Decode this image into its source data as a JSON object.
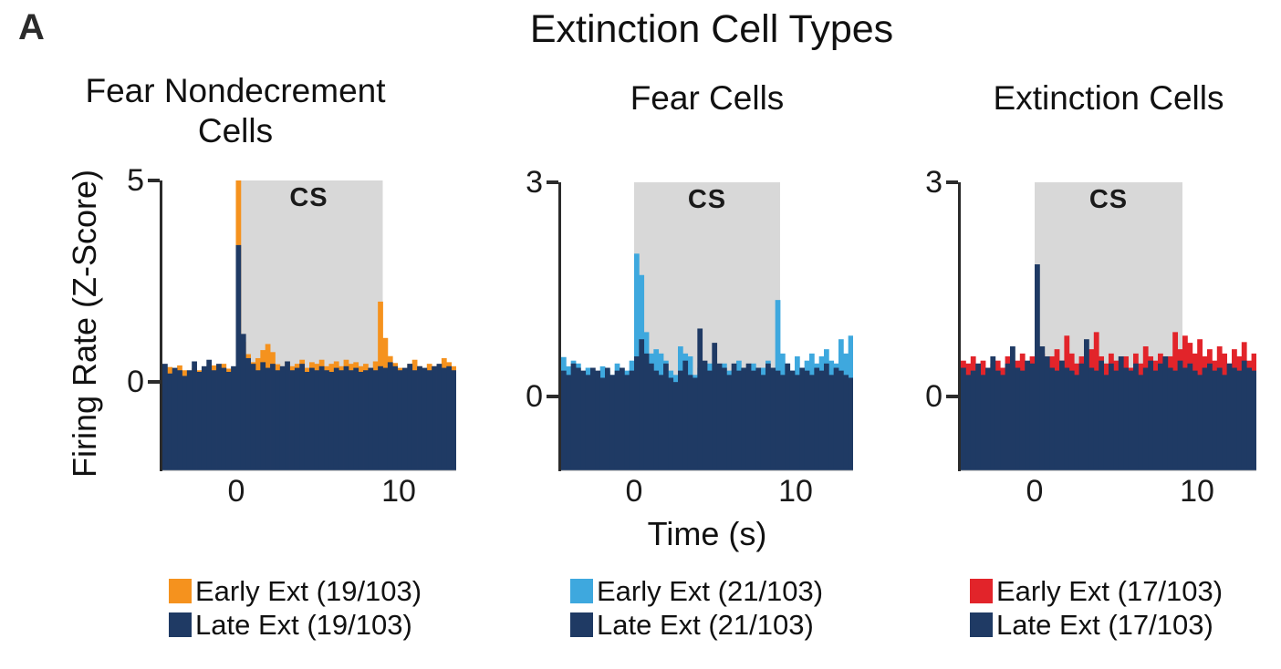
{
  "panel_label": "A",
  "title": "Extinction Cell Types",
  "xlabel": "Time (s)",
  "ylabel": "Firing Rate (Z-Score)",
  "cs_label": "CS",
  "colors": {
    "early_nondecrement": "#F5921E",
    "early_fear": "#3EA8DE",
    "early_extinction": "#E2242A",
    "late": "#1F3A64",
    "cs_box": "#D8D8D8",
    "axis": "#2b2b2b"
  },
  "chart_data": [
    {
      "type": "bar",
      "title_lines": [
        "Fear Nondecrement",
        "Cells"
      ],
      "xlim": [
        -5,
        15
      ],
      "ylim": [
        -2.2,
        5
      ],
      "xticks": [
        0,
        10
      ],
      "xtick_labels": [
        "0",
        "10"
      ],
      "yticks": [
        5,
        0
      ],
      "ytick_labels": [
        "5",
        "0"
      ],
      "cs_interval": [
        0,
        10
      ],
      "series": [
        {
          "name": "Early Ext (19/103)",
          "color": "#F5921E",
          "values": [
            0.3,
            0.38,
            0.25,
            0.42,
            0.3,
            0.22,
            0.35,
            0.3,
            0.26,
            0.36,
            0.42,
            0.3,
            0.46,
            0.34,
            0.3,
            5.0,
            1.0,
            0.7,
            0.5,
            0.6,
            0.8,
            0.95,
            0.75,
            0.45,
            0.35,
            0.52,
            0.4,
            0.46,
            0.56,
            0.36,
            0.5,
            0.46,
            0.56,
            0.4,
            0.46,
            0.52,
            0.4,
            0.56,
            0.46,
            0.5,
            0.4,
            0.46,
            0.36,
            0.52,
            2.0,
            1.1,
            0.65,
            0.48,
            0.36,
            0.3,
            0.46,
            0.56,
            0.4,
            0.34,
            0.46,
            0.4,
            0.34,
            0.6,
            0.5,
            0.4
          ]
        },
        {
          "name": "Late Ext (19/103)",
          "color": "#1F3A64",
          "values": [
            0.46,
            0.22,
            0.36,
            0.3,
            0.16,
            0.3,
            0.52,
            0.26,
            0.4,
            0.56,
            0.3,
            0.46,
            0.36,
            0.26,
            0.4,
            3.4,
            1.2,
            0.6,
            0.46,
            0.3,
            0.5,
            0.36,
            0.46,
            0.3,
            0.4,
            0.52,
            0.3,
            0.36,
            0.46,
            0.26,
            0.36,
            0.3,
            0.4,
            0.3,
            0.26,
            0.36,
            0.3,
            0.4,
            0.3,
            0.36,
            0.26,
            0.3,
            0.36,
            0.3,
            0.4,
            0.36,
            0.5,
            0.4,
            0.3,
            0.36,
            0.46,
            0.3,
            0.4,
            0.36,
            0.3,
            0.4,
            0.46,
            0.36,
            0.4,
            0.3
          ]
        }
      ]
    },
    {
      "type": "bar",
      "title_lines": [
        "Fear Cells"
      ],
      "xlim": [
        -5,
        15
      ],
      "ylim": [
        -1.05,
        3
      ],
      "xticks": [
        0,
        10
      ],
      "xtick_labels": [
        "0",
        "10"
      ],
      "yticks": [
        3,
        0
      ],
      "ytick_labels": [
        "3",
        "0"
      ],
      "cs_interval": [
        0,
        10
      ],
      "series": [
        {
          "name": "Early Ext (21/103)",
          "color": "#3EA8DE",
          "values": [
            0.55,
            0.42,
            0.5,
            0.46,
            0.3,
            0.4,
            0.36,
            0.3,
            0.42,
            0.36,
            0.3,
            0.46,
            0.4,
            0.36,
            0.5,
            2.0,
            1.7,
            0.9,
            0.6,
            0.66,
            0.6,
            0.5,
            0.36,
            0.3,
            0.7,
            0.6,
            0.56,
            0.3,
            0.4,
            0.36,
            0.46,
            0.3,
            0.42,
            0.46,
            0.36,
            0.3,
            0.5,
            0.4,
            0.36,
            0.46,
            0.3,
            0.4,
            0.5,
            0.36,
            1.35,
            0.6,
            0.46,
            0.36,
            0.56,
            0.4,
            0.5,
            0.6,
            0.46,
            0.56,
            0.66,
            0.5,
            0.46,
            0.8,
            0.6,
            0.85
          ]
        },
        {
          "name": "Late Ext (21/103)",
          "color": "#1F3A64",
          "values": [
            0.36,
            0.3,
            0.46,
            0.4,
            0.36,
            0.3,
            0.4,
            0.36,
            0.26,
            0.4,
            0.3,
            0.36,
            0.4,
            0.3,
            0.36,
            0.56,
            0.8,
            0.6,
            0.46,
            0.36,
            0.3,
            0.46,
            0.26,
            0.2,
            0.36,
            0.5,
            0.3,
            0.26,
            0.95,
            0.5,
            0.36,
            0.75,
            0.46,
            0.4,
            0.3,
            0.46,
            0.36,
            0.4,
            0.46,
            0.36,
            0.4,
            0.3,
            0.46,
            0.4,
            0.36,
            0.3,
            0.46,
            0.36,
            0.3,
            0.4,
            0.36,
            0.3,
            0.4,
            0.36,
            0.46,
            0.3,
            0.4,
            0.36,
            0.3,
            0.26
          ]
        }
      ]
    },
    {
      "type": "bar",
      "title_lines": [
        "Extinction Cells"
      ],
      "xlim": [
        -5,
        15
      ],
      "ylim": [
        -1.05,
        3
      ],
      "xticks": [
        0,
        10
      ],
      "xtick_labels": [
        "0",
        "10"
      ],
      "yticks": [
        3,
        0
      ],
      "ytick_labels": [
        "3",
        "0"
      ],
      "cs_interval": [
        0,
        10
      ],
      "series": [
        {
          "name": "Early Ext (17/103)",
          "color": "#E2242A",
          "values": [
            0.5,
            0.46,
            0.56,
            0.4,
            0.5,
            0.36,
            0.46,
            0.5,
            0.4,
            0.56,
            0.46,
            0.5,
            0.6,
            0.4,
            0.56,
            0.5,
            0.6,
            0.46,
            0.56,
            0.66,
            0.5,
            0.85,
            0.6,
            0.46,
            0.56,
            0.5,
            0.66,
            0.9,
            0.56,
            0.46,
            0.6,
            0.5,
            0.46,
            0.56,
            0.4,
            0.6,
            0.46,
            0.7,
            0.56,
            0.5,
            0.6,
            0.46,
            0.56,
            0.9,
            0.66,
            0.85,
            0.75,
            0.6,
            0.8,
            0.56,
            0.66,
            0.5,
            0.7,
            0.6,
            0.46,
            0.66,
            0.56,
            0.76,
            0.5,
            0.6
          ]
        },
        {
          "name": "Late Ext (17/103)",
          "color": "#1F3A64",
          "values": [
            0.4,
            0.3,
            0.36,
            0.46,
            0.3,
            0.4,
            0.56,
            0.36,
            0.3,
            0.46,
            0.7,
            0.4,
            0.36,
            0.5,
            0.46,
            1.85,
            0.7,
            0.56,
            0.4,
            0.36,
            0.5,
            0.4,
            0.36,
            0.3,
            0.46,
            0.8,
            0.4,
            0.36,
            0.5,
            0.3,
            0.46,
            0.36,
            0.56,
            0.4,
            0.36,
            0.46,
            0.3,
            0.4,
            0.5,
            0.36,
            0.46,
            0.56,
            0.4,
            0.36,
            0.5,
            0.4,
            0.46,
            0.36,
            0.3,
            0.4,
            0.46,
            0.36,
            0.4,
            0.3,
            0.46,
            0.4,
            0.36,
            0.5,
            0.4,
            0.36
          ]
        }
      ]
    }
  ]
}
